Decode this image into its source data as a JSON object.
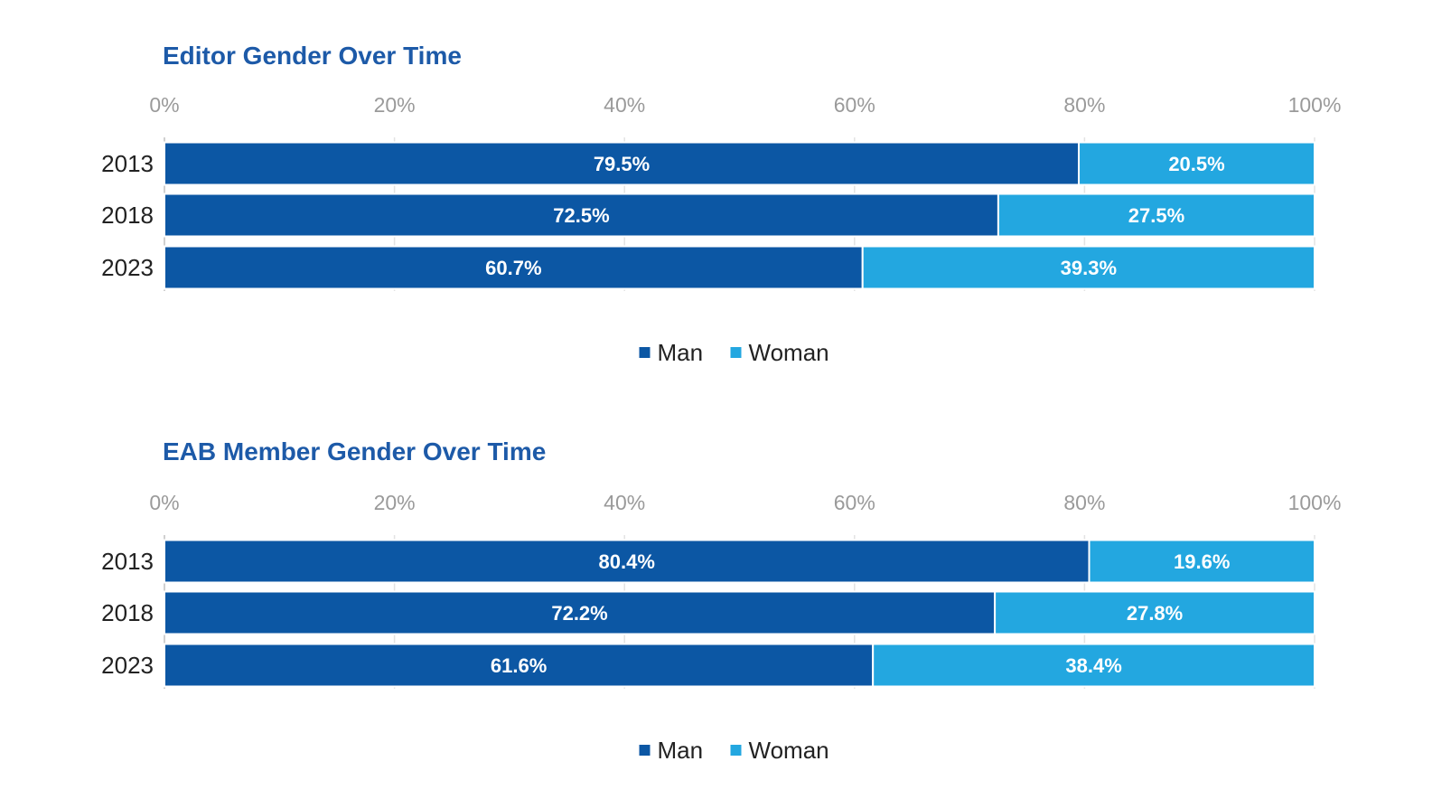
{
  "chart_data": [
    {
      "type": "bar",
      "orientation": "horizontal",
      "stacked": true,
      "title": "Editor Gender Over Time",
      "categories": [
        "2013",
        "2018",
        "2023"
      ],
      "series": [
        {
          "name": "Man",
          "values": [
            79.5,
            72.5,
            60.7
          ],
          "labels": [
            "79.5%",
            "72.5%",
            "60.7%"
          ],
          "color": "#0c57a4"
        },
        {
          "name": "Woman",
          "values": [
            20.5,
            27.5,
            39.3
          ],
          "labels": [
            "20.5%",
            "27.5%",
            "39.3%"
          ],
          "color": "#23a7e0"
        }
      ],
      "xlim": [
        0,
        100
      ],
      "xticks": [
        "0%",
        "20%",
        "40%",
        "60%",
        "80%",
        "100%"
      ],
      "grid": true,
      "legend_position": "bottom"
    },
    {
      "type": "bar",
      "orientation": "horizontal",
      "stacked": true,
      "title": "EAB Member Gender Over Time",
      "categories": [
        "2013",
        "2018",
        "2023"
      ],
      "series": [
        {
          "name": "Man",
          "values": [
            80.4,
            72.2,
            61.6
          ],
          "labels": [
            "80.4%",
            "72.2%",
            "61.6%"
          ],
          "color": "#0c57a4"
        },
        {
          "name": "Woman",
          "values": [
            19.6,
            27.8,
            38.4
          ],
          "labels": [
            "19.6%",
            "27.8%",
            "38.4%"
          ],
          "color": "#23a7e0"
        }
      ],
      "xlim": [
        0,
        100
      ],
      "xticks": [
        "0%",
        "20%",
        "40%",
        "60%",
        "80%",
        "100%"
      ],
      "grid": true,
      "legend_position": "bottom"
    }
  ]
}
